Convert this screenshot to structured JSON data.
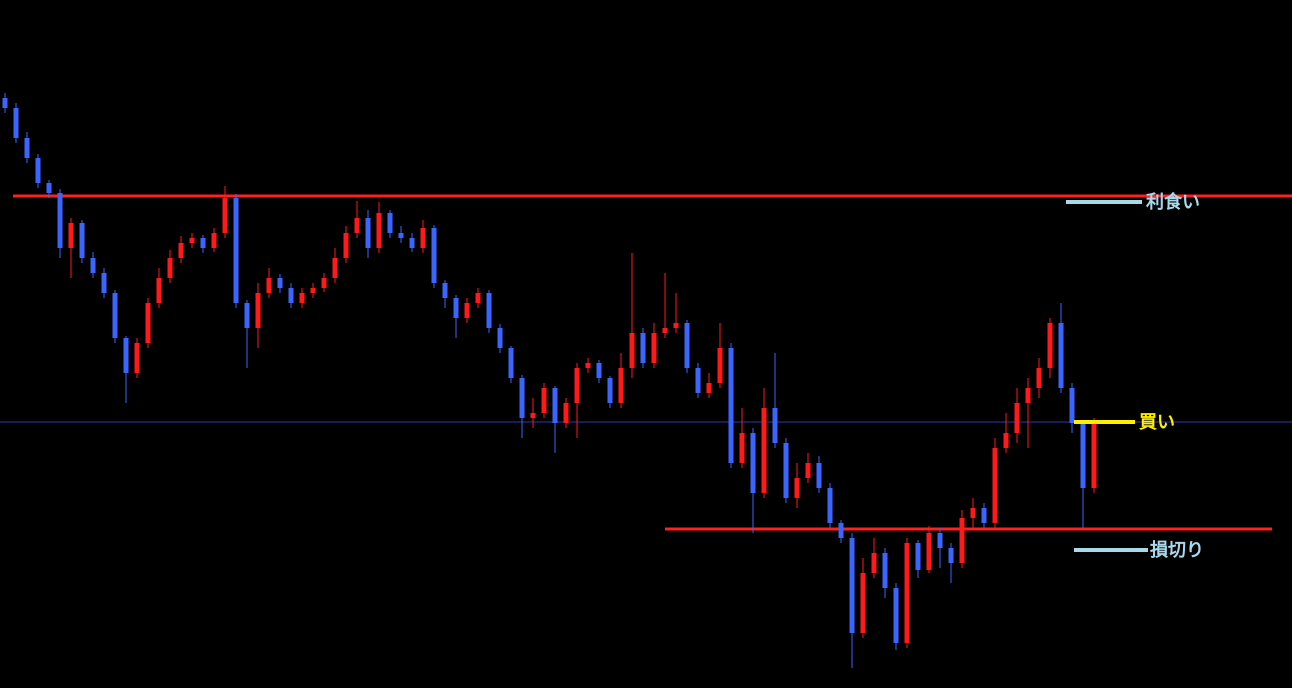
{
  "chart_data": {
    "type": "candlestick",
    "ylim": [
      0,
      688
    ],
    "up_color": "#ff1a1a",
    "down_color": "#3a66ff",
    "open": [
      590,
      580,
      550,
      530,
      505,
      495,
      440,
      465,
      430,
      415,
      395,
      350,
      315,
      345,
      385,
      410,
      430,
      445,
      450,
      440,
      455,
      490,
      385,
      360,
      395,
      410,
      400,
      385,
      395,
      400,
      410,
      430,
      455,
      470,
      440,
      475,
      455,
      450,
      440,
      460,
      405,
      390,
      370,
      385,
      395,
      360,
      340,
      310,
      270,
      275,
      300,
      265,
      285,
      320,
      325,
      310,
      285,
      320,
      355,
      325,
      355,
      360,
      365,
      320,
      295,
      305,
      340,
      225,
      255,
      195,
      280,
      245,
      190,
      210,
      225,
      200,
      165,
      150,
      55,
      115,
      135,
      100,
      45,
      145,
      118,
      155,
      140,
      125,
      170,
      180,
      165,
      240,
      255,
      285,
      300,
      320,
      365,
      300,
      265,
      200
    ],
    "high": [
      595,
      585,
      556,
      534,
      508,
      499,
      470,
      468,
      436,
      420,
      398,
      352,
      350,
      390,
      420,
      438,
      452,
      455,
      453,
      460,
      502,
      494,
      388,
      405,
      420,
      414,
      405,
      400,
      405,
      415,
      440,
      462,
      487,
      478,
      486,
      478,
      462,
      455,
      468,
      463,
      408,
      393,
      390,
      400,
      398,
      364,
      342,
      313,
      290,
      305,
      302,
      290,
      325,
      330,
      328,
      312,
      335,
      435,
      360,
      365,
      415,
      395,
      368,
      325,
      315,
      365,
      345,
      280,
      260,
      300,
      335,
      250,
      225,
      235,
      232,
      205,
      168,
      155,
      130,
      150,
      140,
      105,
      150,
      148,
      162,
      160,
      145,
      178,
      190,
      185,
      250,
      275,
      300,
      310,
      330,
      370,
      385,
      305,
      268,
      270
    ],
    "low": [
      575,
      545,
      525,
      500,
      490,
      430,
      410,
      425,
      410,
      390,
      345,
      285,
      310,
      340,
      380,
      405,
      425,
      440,
      435,
      436,
      450,
      380,
      320,
      340,
      390,
      395,
      380,
      380,
      390,
      396,
      405,
      425,
      450,
      430,
      435,
      450,
      445,
      436,
      435,
      400,
      380,
      350,
      365,
      380,
      355,
      335,
      305,
      250,
      260,
      270,
      235,
      260,
      250,
      315,
      305,
      280,
      280,
      310,
      320,
      320,
      350,
      355,
      315,
      290,
      290,
      300,
      220,
      220,
      155,
      190,
      240,
      185,
      180,
      205,
      195,
      160,
      145,
      20,
      50,
      110,
      90,
      38,
      40,
      110,
      115,
      120,
      105,
      120,
      160,
      160,
      160,
      235,
      245,
      240,
      290,
      310,
      295,
      255,
      160,
      195
    ],
    "close": [
      580,
      550,
      530,
      505,
      495,
      440,
      465,
      430,
      415,
      395,
      350,
      315,
      345,
      385,
      410,
      430,
      445,
      450,
      440,
      455,
      490,
      385,
      360,
      395,
      410,
      400,
      385,
      395,
      400,
      410,
      430,
      455,
      470,
      440,
      475,
      455,
      450,
      440,
      460,
      405,
      390,
      370,
      385,
      395,
      360,
      340,
      310,
      270,
      275,
      300,
      265,
      285,
      320,
      325,
      310,
      285,
      320,
      355,
      325,
      355,
      360,
      365,
      320,
      295,
      305,
      340,
      225,
      255,
      195,
      280,
      245,
      190,
      210,
      225,
      200,
      165,
      150,
      55,
      115,
      135,
      100,
      45,
      145,
      118,
      155,
      140,
      125,
      170,
      180,
      165,
      240,
      255,
      285,
      300,
      320,
      365,
      300,
      265,
      200,
      265
    ],
    "levels": [
      {
        "name": "resistance",
        "value": 492,
        "color": "#ff2020"
      },
      {
        "name": "support",
        "value": 159,
        "color": "#ff2020"
      },
      {
        "name": "current",
        "value": 266,
        "color": "#2a3ab0"
      }
    ],
    "markers": [
      {
        "text": "利食い",
        "value": 486,
        "color": "#a8d8ea"
      },
      {
        "text": "買い",
        "value": 266,
        "color": "#ffee00"
      },
      {
        "text": "損切り",
        "value": 138,
        "color": "#a8d8ea"
      }
    ]
  }
}
